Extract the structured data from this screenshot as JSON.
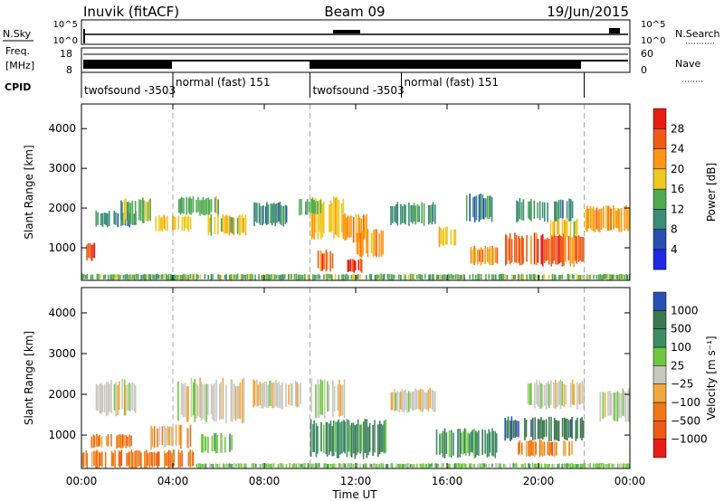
{
  "header": {
    "station": "Inuvik (fitACF)",
    "beam": "Beam 09",
    "date": "19/Jun/2015"
  },
  "summary_panels": {
    "nsky_label": "N.Sky",
    "nsearch_label": "N.Search",
    "nsky_ticks": [
      "10^5",
      "10^0"
    ],
    "nsky_right_ticks": [
      "10^5",
      "10^0"
    ],
    "freq_label_1": "Freq.",
    "freq_label_2": "[MHz]",
    "freq_ticks": [
      "18",
      "8"
    ],
    "nave_label": "Nave",
    "nave_ticks": [
      "60",
      "0"
    ],
    "cpid_label": "CPID",
    "cpid_segments": [
      {
        "name": "twofsound",
        "id": "-3503",
        "start_hour": 0.0,
        "end_hour": 4.0
      },
      {
        "name": "normal (fast)",
        "id": "151",
        "start_hour": 4.0,
        "end_hour": 10.0
      },
      {
        "name": "twofsound",
        "id": "-3503",
        "start_hour": 10.0,
        "end_hour": 14.0
      },
      {
        "name": "normal (fast)",
        "id": "151",
        "start_hour": 14.0,
        "end_hour": 22.0
      }
    ]
  },
  "chart_data": [
    {
      "type": "heatmap",
      "title": "",
      "xlabel": "Time UT",
      "ylabel": "Slant Range [km]",
      "x_ticks": [
        "00:00",
        "04:00",
        "08:00",
        "12:00",
        "16:00",
        "20:00",
        "00:00"
      ],
      "xlim_hours": [
        0,
        24
      ],
      "y_ticks": [
        1000,
        2000,
        3000,
        4000
      ],
      "ylim": [
        180,
        4620
      ],
      "colorbar_label": "Power [dB]",
      "colorbar_ticks": [
        "4",
        "8",
        "12",
        "16",
        "20",
        "24",
        "28"
      ],
      "colorbar_colors": [
        "#1e28e6",
        "#2850b4",
        "#3c8c78",
        "#50aa50",
        "#f0c81e",
        "#ff9614",
        "#f05a14",
        "#e61e14"
      ],
      "blobs": [
        {
          "t0": 0.0,
          "t1": 24.0,
          "r0": 200,
          "r1": 330,
          "level": 3
        },
        {
          "t0": 0.6,
          "t1": 2.4,
          "r0": 1550,
          "r1": 1900,
          "level": 2
        },
        {
          "t0": 0.2,
          "t1": 0.6,
          "r0": 700,
          "r1": 1100,
          "level": 6
        },
        {
          "t0": 1.6,
          "t1": 3.2,
          "r0": 1650,
          "r1": 2200,
          "level": 3
        },
        {
          "t0": 3.2,
          "t1": 4.8,
          "r0": 1450,
          "r1": 1800,
          "level": 4
        },
        {
          "t0": 4.2,
          "t1": 6.0,
          "r0": 1850,
          "r1": 2250,
          "level": 3
        },
        {
          "t0": 5.5,
          "t1": 7.2,
          "r0": 1350,
          "r1": 1800,
          "level": 4
        },
        {
          "t0": 7.5,
          "t1": 9.0,
          "r0": 1600,
          "r1": 2100,
          "level": 2
        },
        {
          "t0": 10.0,
          "t1": 11.5,
          "r0": 1300,
          "r1": 2200,
          "level": 4
        },
        {
          "t0": 10.3,
          "t1": 11.0,
          "r0": 450,
          "r1": 900,
          "level": 6
        },
        {
          "t0": 11.4,
          "t1": 12.5,
          "r0": 1200,
          "r1": 1800,
          "level": 5
        },
        {
          "t0": 12.0,
          "t1": 13.2,
          "r0": 800,
          "r1": 1400,
          "level": 5
        },
        {
          "t0": 11.6,
          "t1": 12.3,
          "r0": 400,
          "r1": 700,
          "level": 7
        },
        {
          "t0": 13.5,
          "t1": 15.5,
          "r0": 1600,
          "r1": 2100,
          "level": 2
        },
        {
          "t0": 15.6,
          "t1": 16.4,
          "r0": 1050,
          "r1": 1500,
          "level": 4
        },
        {
          "t0": 17.0,
          "t1": 18.2,
          "r0": 600,
          "r1": 1000,
          "level": 5
        },
        {
          "t0": 18.5,
          "t1": 22.0,
          "r0": 600,
          "r1": 1300,
          "level": 6
        },
        {
          "t0": 19.0,
          "t1": 21.5,
          "r0": 1700,
          "r1": 2200,
          "level": 2
        },
        {
          "t0": 20.5,
          "t1": 21.8,
          "r0": 1300,
          "r1": 1700,
          "level": 4
        },
        {
          "t0": 22.0,
          "t1": 24.0,
          "r0": 1450,
          "r1": 2000,
          "level": 5
        },
        {
          "t0": 16.8,
          "t1": 18.0,
          "r0": 1700,
          "r1": 2300,
          "level": 2
        },
        {
          "t0": 9.5,
          "t1": 10.5,
          "r0": 1850,
          "r1": 2200,
          "level": 3
        }
      ]
    },
    {
      "type": "heatmap",
      "title": "",
      "xlabel": "Time UT",
      "ylabel": "Slant Range [km]",
      "x_ticks": [
        "00:00",
        "04:00",
        "08:00",
        "12:00",
        "16:00",
        "20:00",
        "00:00"
      ],
      "xlim_hours": [
        0,
        24
      ],
      "y_ticks": [
        1000,
        2000,
        3000,
        4000
      ],
      "ylim": [
        180,
        4620
      ],
      "colorbar_label": "Velocity [m s⁻¹]",
      "colorbar_ticks": [
        "1000",
        "500",
        "100",
        "25",
        "−25",
        "−100",
        "−500",
        "−1000"
      ],
      "colorbar_colors": [
        "#2850b4",
        "#3c7850",
        "#3c8c64",
        "#6ec83c",
        "#c8c8c0",
        "#f0a83c",
        "#f07814",
        "#f05a14",
        "#e61e14"
      ],
      "blobs": [
        {
          "t0": 0.0,
          "t1": 5.0,
          "r0": 200,
          "r1": 600,
          "level": 6
        },
        {
          "t0": 5.0,
          "t1": 24.0,
          "r0": 200,
          "r1": 300,
          "level": 3
        },
        {
          "t0": 0.6,
          "t1": 2.4,
          "r0": 1550,
          "r1": 2300,
          "level": 4
        },
        {
          "t0": 0.4,
          "t1": 2.2,
          "r0": 700,
          "r1": 1000,
          "level": 6
        },
        {
          "t0": 3.0,
          "t1": 4.8,
          "r0": 700,
          "r1": 1200,
          "level": 5
        },
        {
          "t0": 4.2,
          "t1": 7.2,
          "r0": 1400,
          "r1": 2300,
          "level": 4
        },
        {
          "t0": 5.2,
          "t1": 6.6,
          "r0": 600,
          "r1": 1000,
          "level": 3
        },
        {
          "t0": 7.4,
          "t1": 9.6,
          "r0": 1700,
          "r1": 2300,
          "level": 4
        },
        {
          "t0": 10.0,
          "t1": 13.5,
          "r0": 500,
          "r1": 1300,
          "level": 2
        },
        {
          "t0": 10.0,
          "t1": 11.6,
          "r0": 1500,
          "r1": 2300,
          "level": 4
        },
        {
          "t0": 15.5,
          "t1": 18.2,
          "r0": 500,
          "r1": 1100,
          "level": 2
        },
        {
          "t0": 18.5,
          "t1": 22.0,
          "r0": 900,
          "r1": 1400,
          "level": 1
        },
        {
          "t0": 19.0,
          "t1": 21.5,
          "r0": 500,
          "r1": 850,
          "level": 6
        },
        {
          "t0": 19.5,
          "t1": 22.0,
          "r0": 1700,
          "r1": 2300,
          "level": 4
        },
        {
          "t0": 22.5,
          "t1": 24.0,
          "r0": 1400,
          "r1": 2100,
          "level": 4
        },
        {
          "t0": 13.5,
          "t1": 15.5,
          "r0": 1600,
          "r1": 2100,
          "level": 4
        }
      ]
    }
  ]
}
